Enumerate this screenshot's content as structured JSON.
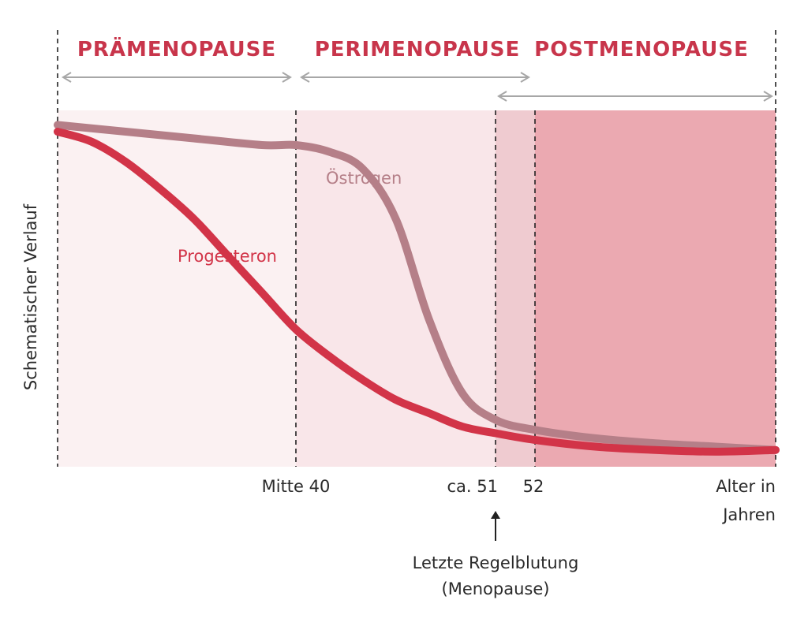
{
  "chart_data": {
    "type": "line",
    "title": "",
    "ylabel": "Schematischer Verlauf",
    "xlabel": "Alter in Jahren",
    "xlabel_lines": [
      "Alter in",
      "Jahren"
    ],
    "x_ticks": [
      {
        "label": "Mitte 40",
        "value": 45
      },
      {
        "label": "ca. 51",
        "value": 51
      },
      {
        "label": "52",
        "value": 52
      }
    ],
    "x_range": [
      38,
      60
    ],
    "y_range": [
      0,
      1
    ],
    "phases": [
      {
        "name": "PRÄMENOPAUSE",
        "start": 38,
        "end": 45,
        "shade": "#fbf1f2"
      },
      {
        "name": "PERIMENOPAUSE",
        "start": 45,
        "end": 52,
        "shade": "#f9e6e9"
      },
      {
        "name": "POSTMENOPAUSE",
        "start": 51,
        "end": 60,
        "shade": "#eba9b1"
      }
    ],
    "overlap_shade": "#efcbd0",
    "series": [
      {
        "name": "Östrogen",
        "color": "#b57f88",
        "points": [
          [
            38,
            0.98
          ],
          [
            40,
            0.96
          ],
          [
            42,
            0.94
          ],
          [
            44,
            0.92
          ],
          [
            45,
            0.92
          ],
          [
            46,
            0.9
          ],
          [
            47,
            0.85
          ],
          [
            48,
            0.7
          ],
          [
            49,
            0.4
          ],
          [
            50,
            0.18
          ],
          [
            51,
            0.1
          ],
          [
            52,
            0.07
          ],
          [
            54,
            0.045
          ],
          [
            56,
            0.03
          ],
          [
            58,
            0.02
          ],
          [
            60,
            0.01
          ]
        ]
      },
      {
        "name": "Progesteron",
        "color": "#d23448",
        "points": [
          [
            38,
            0.96
          ],
          [
            39,
            0.93
          ],
          [
            40,
            0.87
          ],
          [
            41,
            0.79
          ],
          [
            42,
            0.7
          ],
          [
            43,
            0.59
          ],
          [
            44,
            0.48
          ],
          [
            45,
            0.37
          ],
          [
            46,
            0.29
          ],
          [
            47,
            0.22
          ],
          [
            48,
            0.16
          ],
          [
            49,
            0.12
          ],
          [
            50,
            0.08
          ],
          [
            51,
            0.06
          ],
          [
            52,
            0.04
          ],
          [
            54,
            0.02
          ],
          [
            56,
            0.01
          ],
          [
            58,
            0.005
          ],
          [
            60,
            0.01
          ]
        ]
      }
    ],
    "annotation": {
      "lines": [
        "Letzte Regelblutung",
        "(Menopause)"
      ],
      "x": 51
    },
    "legend": "none",
    "grid": false
  }
}
